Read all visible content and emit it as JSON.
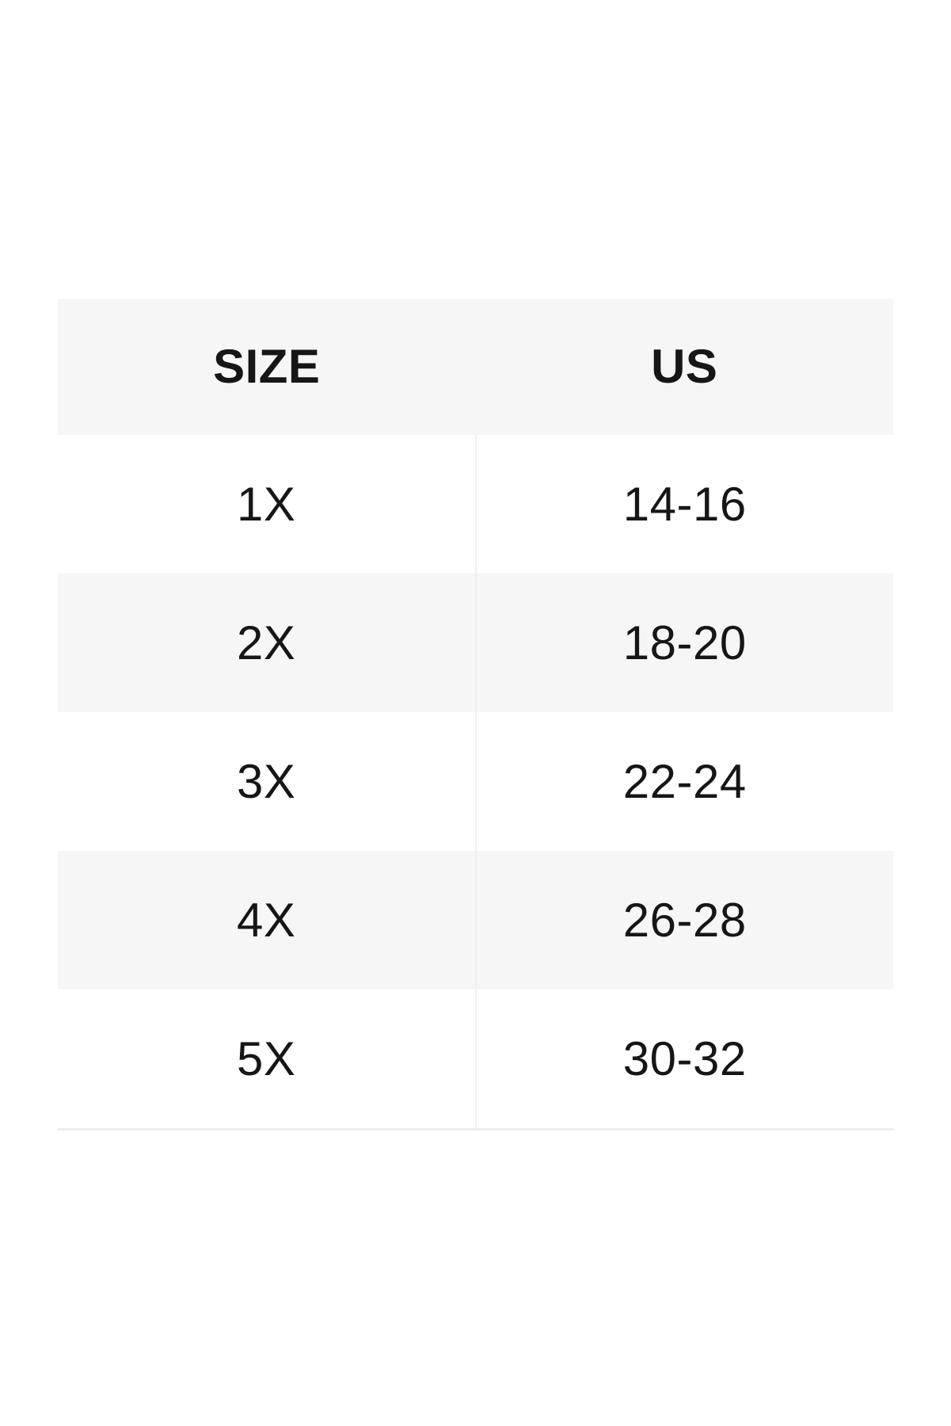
{
  "size_chart": {
    "header": {
      "size": "SIZE",
      "us": "US"
    },
    "rows": [
      {
        "size": "1X",
        "us": "14-16"
      },
      {
        "size": "2X",
        "us": "18-20"
      },
      {
        "size": "3X",
        "us": "22-24"
      },
      {
        "size": "4X",
        "us": "26-28"
      },
      {
        "size": "5X",
        "us": "30-32"
      }
    ],
    "colors": {
      "header_bg": "#f6f6f6",
      "alt_row_bg": "#f6f6f6",
      "row_bg": "#ffffff",
      "divider": "#efefef",
      "bottom_border": "#ededed",
      "text": "#161616"
    }
  },
  "chart_data": {
    "type": "table",
    "columns": [
      "SIZE",
      "US"
    ],
    "rows": [
      [
        "1X",
        "14-16"
      ],
      [
        "2X",
        "18-20"
      ],
      [
        "3X",
        "22-24"
      ],
      [
        "4X",
        "26-28"
      ],
      [
        "5X",
        "30-32"
      ]
    ],
    "layout": {
      "header_background": "#f6f6f6",
      "alternating_rows": true,
      "grid": "minimal"
    }
  }
}
